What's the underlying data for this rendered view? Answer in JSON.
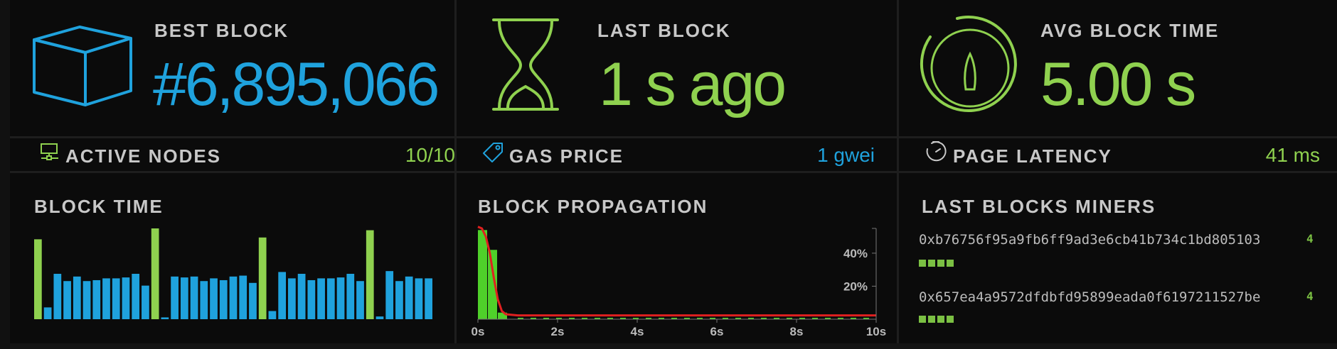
{
  "colors": {
    "blue": "#1fa2dd",
    "green": "#8fd14f",
    "bright_green": "#7bc043",
    "red": "#e02020"
  },
  "stats": {
    "best_block": {
      "label": "BEST BLOCK",
      "value": "#6,895,066",
      "icon": "cube-icon"
    },
    "last_block": {
      "label": "LAST BLOCK",
      "value": "1 s ago",
      "icon": "hourglass-icon"
    },
    "avg_block_time": {
      "label": "AVG BLOCK TIME",
      "value": "5.00 s",
      "icon": "timer-dial-icon"
    }
  },
  "rows": {
    "active_nodes": {
      "label": "ACTIVE NODES",
      "value": "10/10",
      "icon": "network-node-icon"
    },
    "gas_price": {
      "label": "GAS PRICE",
      "value": "1 gwei",
      "icon": "price-tag-icon"
    },
    "page_latency": {
      "label": "PAGE LATENCY",
      "value": "41 ms",
      "icon": "stopwatch-icon"
    }
  },
  "block_time": {
    "title": "BLOCK TIME",
    "bars": [
      {
        "v": 0.88,
        "c": "green"
      },
      {
        "v": 0.13,
        "c": "blue"
      },
      {
        "v": 0.5,
        "c": "blue"
      },
      {
        "v": 0.42,
        "c": "blue"
      },
      {
        "v": 0.47,
        "c": "blue"
      },
      {
        "v": 0.42,
        "c": "blue"
      },
      {
        "v": 0.43,
        "c": "blue"
      },
      {
        "v": 0.45,
        "c": "blue"
      },
      {
        "v": 0.45,
        "c": "blue"
      },
      {
        "v": 0.46,
        "c": "blue"
      },
      {
        "v": 0.5,
        "c": "blue"
      },
      {
        "v": 0.37,
        "c": "blue"
      },
      {
        "v": 1.0,
        "c": "green"
      },
      {
        "v": 0.02,
        "c": "blue"
      },
      {
        "v": 0.47,
        "c": "blue"
      },
      {
        "v": 0.46,
        "c": "blue"
      },
      {
        "v": 0.47,
        "c": "blue"
      },
      {
        "v": 0.42,
        "c": "blue"
      },
      {
        "v": 0.45,
        "c": "blue"
      },
      {
        "v": 0.43,
        "c": "blue"
      },
      {
        "v": 0.47,
        "c": "blue"
      },
      {
        "v": 0.48,
        "c": "blue"
      },
      {
        "v": 0.4,
        "c": "blue"
      },
      {
        "v": 0.9,
        "c": "green"
      },
      {
        "v": 0.09,
        "c": "blue"
      },
      {
        "v": 0.52,
        "c": "blue"
      },
      {
        "v": 0.45,
        "c": "blue"
      },
      {
        "v": 0.5,
        "c": "blue"
      },
      {
        "v": 0.43,
        "c": "blue"
      },
      {
        "v": 0.45,
        "c": "blue"
      },
      {
        "v": 0.45,
        "c": "blue"
      },
      {
        "v": 0.46,
        "c": "blue"
      },
      {
        "v": 0.5,
        "c": "blue"
      },
      {
        "v": 0.42,
        "c": "blue"
      },
      {
        "v": 0.98,
        "c": "green"
      },
      {
        "v": 0.03,
        "c": "blue"
      },
      {
        "v": 0.53,
        "c": "blue"
      },
      {
        "v": 0.42,
        "c": "blue"
      },
      {
        "v": 0.47,
        "c": "blue"
      },
      {
        "v": 0.45,
        "c": "blue"
      },
      {
        "v": 0.45,
        "c": "blue"
      }
    ]
  },
  "block_propagation": {
    "title": "BLOCK PROPAGATION",
    "chart_data": {
      "type": "bar",
      "x_ticks": [
        "0s",
        "2s",
        "4s",
        "6s",
        "8s",
        "10s"
      ],
      "y_ticks": [
        "20%",
        "40%"
      ],
      "x_range": [
        0,
        10
      ],
      "y_range": [
        0,
        55
      ],
      "histogram": [
        {
          "x0": 0.0,
          "x1": 0.25,
          "value": 54
        },
        {
          "x0": 0.25,
          "x1": 0.5,
          "value": 42
        },
        {
          "x0": 0.5,
          "x1": 0.75,
          "value": 4
        },
        {
          "x0": 0.75,
          "x1": 1.0,
          "value": 0
        }
      ],
      "curve": [
        [
          0.0,
          56
        ],
        [
          0.1,
          55
        ],
        [
          0.2,
          50
        ],
        [
          0.3,
          40
        ],
        [
          0.4,
          25
        ],
        [
          0.5,
          12
        ],
        [
          0.6,
          5
        ],
        [
          0.7,
          3
        ],
        [
          1.0,
          2.3
        ],
        [
          2.0,
          2.3
        ],
        [
          4.0,
          2.3
        ],
        [
          6.0,
          2.3
        ],
        [
          8.0,
          2.3
        ],
        [
          10.0,
          2.3
        ]
      ]
    }
  },
  "last_blocks_miners": {
    "title": "LAST BLOCKS MINERS",
    "miners": [
      {
        "address": "0xb76756f95a9fb6ff9ad3e6cb41b734c1bd805103",
        "count": "4",
        "blocks": 4
      },
      {
        "address": "0x657ea4a9572dfdbfd95899eada0f6197211527be",
        "count": "4",
        "blocks": 4
      }
    ]
  }
}
